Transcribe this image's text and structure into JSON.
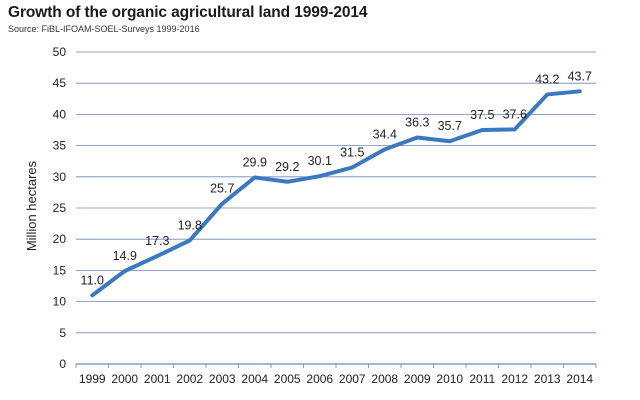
{
  "chart_data": {
    "type": "line",
    "title": "Growth of the organic agricultural land 1999-2014",
    "subtitle": "Source: FiBL-IFOAM-SOEL-Surveys 1999-2016",
    "xlabel": "",
    "ylabel": "Million hectares",
    "ylim": [
      0,
      50
    ],
    "yticks": [
      0,
      5,
      10,
      15,
      20,
      25,
      30,
      35,
      40,
      45,
      50
    ],
    "grid": true,
    "legend": "none",
    "categories": [
      "1999",
      "2000",
      "2001",
      "2002",
      "2003",
      "2004",
      "2005",
      "2006",
      "2007",
      "2008",
      "2009",
      "2010",
      "2011",
      "2012",
      "2013",
      "2014"
    ],
    "series": [
      {
        "values": [
          11.0,
          14.9,
          17.3,
          19.8,
          25.7,
          29.9,
          29.2,
          30.1,
          31.5,
          34.4,
          36.3,
          35.7,
          37.5,
          37.6,
          43.2,
          43.7
        ],
        "labels": [
          "11.0",
          "14.9",
          "17.3",
          "19.8",
          "25.7",
          "29.9",
          "29.2",
          "30.1",
          "31.5",
          "34.4",
          "36.3",
          "35.7",
          "37.5",
          "37.6",
          "43.2",
          "43.7"
        ],
        "color": "#3a78c0"
      }
    ],
    "grid_color": "#6d87b4"
  }
}
